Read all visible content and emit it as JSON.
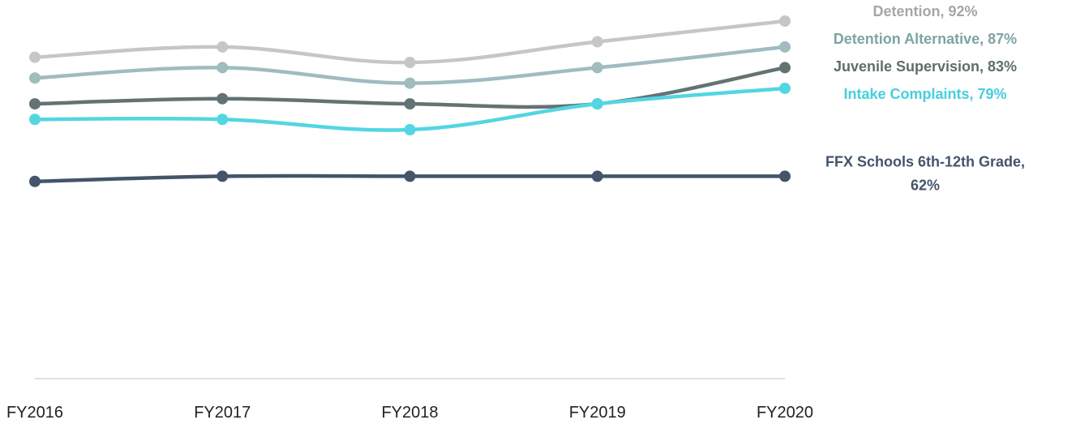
{
  "chart_data": {
    "type": "line",
    "title": "",
    "xlabel": "",
    "ylabel": "",
    "x": [
      "FY2016",
      "FY2017",
      "FY2018",
      "FY2019",
      "FY2020"
    ],
    "ylim": [
      50,
      92
    ],
    "grid": false,
    "legend": "none",
    "series": [
      {
        "name": "Detention",
        "label_lines": [
          "Detention, 92%"
        ],
        "color": "#c6c6c6",
        "label_color": "#a6a6a6",
        "values": [
          85,
          87,
          84,
          88,
          92
        ]
      },
      {
        "name": "Detention Alternative",
        "label_lines": [
          "Detention Alternative, 87%"
        ],
        "color": "#9fbcbe",
        "label_color": "#7ea3a5",
        "values": [
          81,
          83,
          80,
          83,
          87
        ]
      },
      {
        "name": "Juvenile Supervision",
        "label_lines": [
          "Juvenile Supervision, 83%"
        ],
        "color": "#637373",
        "label_color": "#5f6d6d",
        "values": [
          76,
          77,
          76,
          76,
          83
        ]
      },
      {
        "name": "Intake Complaints",
        "label_lines": [
          "Intake Complaints, 79%"
        ],
        "color": "#52d6e2",
        "label_color": "#45cfdd",
        "values": [
          73,
          73,
          71,
          76,
          79
        ]
      },
      {
        "name": "FFX Schools 6th-12th Grade",
        "label_lines": [
          "FFX Schools 6th-12th Grade,",
          "62%"
        ],
        "color": "#44546a",
        "label_color": "#44546a",
        "values": [
          61,
          62,
          62,
          62,
          62
        ]
      }
    ]
  }
}
